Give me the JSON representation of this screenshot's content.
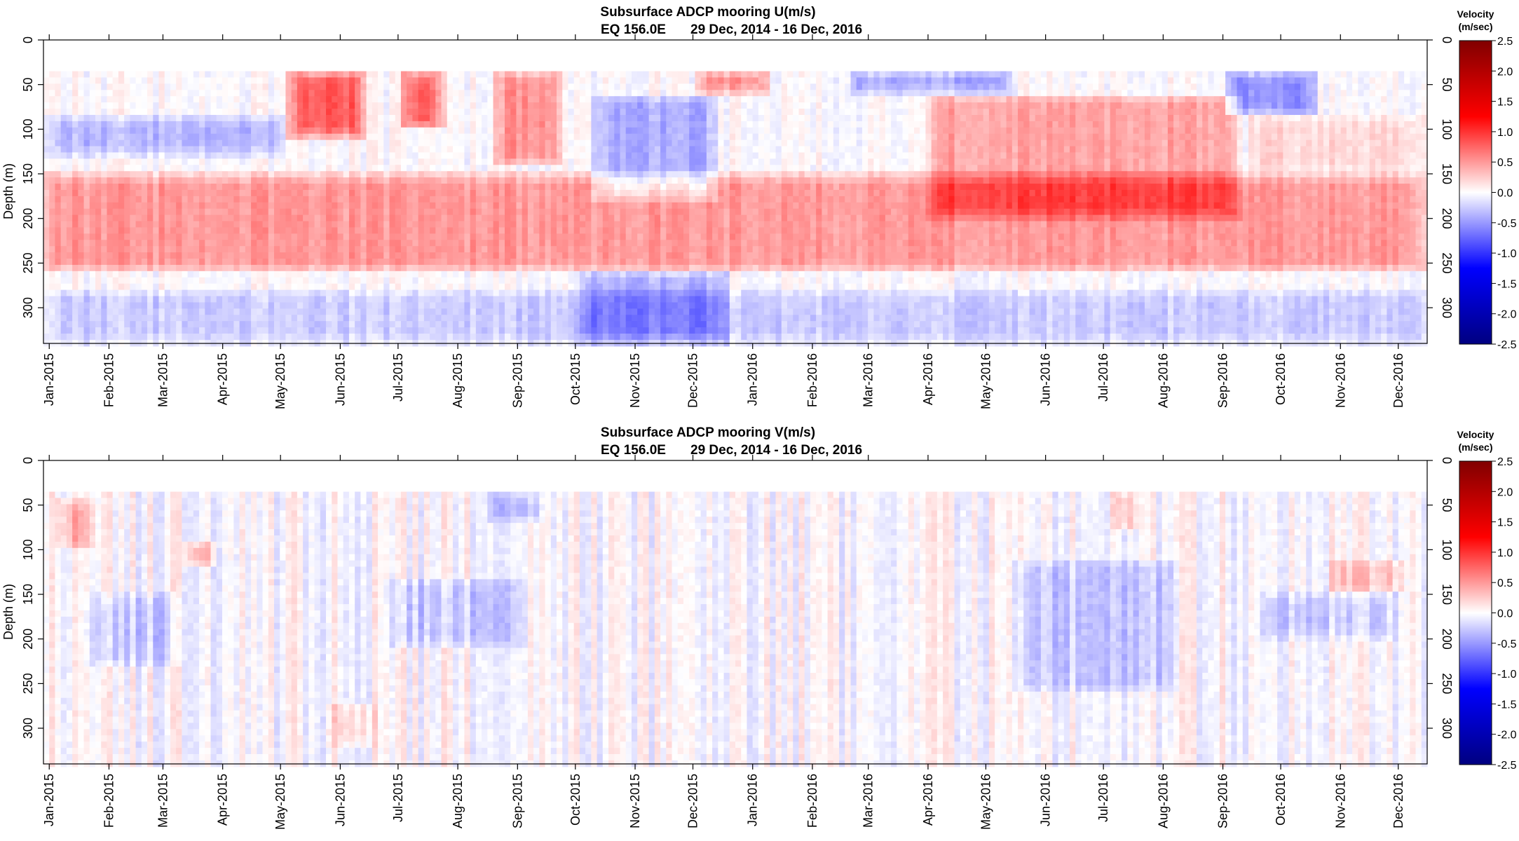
{
  "chart_data": [
    {
      "type": "heatmap",
      "title": "Subsurface ADCP mooring U(m/s)",
      "subtitle_location": "EQ 156.0E",
      "subtitle_dates": "29 Dec, 2014 - 16 Dec, 2016",
      "ylabel": "Depth (m)",
      "xlim": [
        "2014-12-29",
        "2016-12-16"
      ],
      "ylim": [
        0,
        340
      ],
      "data_depth_range": [
        35,
        340
      ],
      "y_ticks": [
        0,
        50,
        100,
        150,
        200,
        250,
        300
      ],
      "x_ticks": [
        {
          "label": "Jan-2015",
          "date": "2015-01-01"
        },
        {
          "label": "Feb-2015",
          "date": "2015-02-01"
        },
        {
          "label": "Mar-2015",
          "date": "2015-03-01"
        },
        {
          "label": "Apr-2015",
          "date": "2015-04-01"
        },
        {
          "label": "May-2015",
          "date": "2015-05-01"
        },
        {
          "label": "Jun-2015",
          "date": "2015-06-01"
        },
        {
          "label": "Jul-2015",
          "date": "2015-07-01"
        },
        {
          "label": "Aug-2015",
          "date": "2015-08-01"
        },
        {
          "label": "Sep-2015",
          "date": "2015-09-01"
        },
        {
          "label": "Oct-2015",
          "date": "2015-10-01"
        },
        {
          "label": "Nov-2015",
          "date": "2015-11-01"
        },
        {
          "label": "Dec-2015",
          "date": "2015-12-01"
        },
        {
          "label": "Jan-2016",
          "date": "2016-01-01"
        },
        {
          "label": "Feb-2016",
          "date": "2016-02-01"
        },
        {
          "label": "Mar-2016",
          "date": "2016-03-01"
        },
        {
          "label": "Apr-2016",
          "date": "2016-04-01"
        },
        {
          "label": "May-2016",
          "date": "2016-05-01"
        },
        {
          "label": "Jun-2016",
          "date": "2016-06-01"
        },
        {
          "label": "Jul-2016",
          "date": "2016-07-01"
        },
        {
          "label": "Aug-2016",
          "date": "2016-08-01"
        },
        {
          "label": "Sep-2016",
          "date": "2016-09-01"
        },
        {
          "label": "Oct-2016",
          "date": "2016-10-01"
        },
        {
          "label": "Nov-2016",
          "date": "2016-11-01"
        },
        {
          "label": "Dec-2016",
          "date": "2016-12-01"
        }
      ],
      "colorbar": {
        "title_line1": "Velocity",
        "title_line2": "(m/sec)",
        "range": [
          -2.5,
          2.5
        ],
        "ticks": [
          "2.5",
          "2.0",
          "1.5",
          "1.0",
          "0.5",
          "0.0",
          "-0.5",
          "-1.0",
          "-1.5",
          "-2.0",
          "-2.5"
        ],
        "colors": [
          "#000080",
          "#0000ff",
          "#ffffff",
          "#ff0000",
          "#800000"
        ]
      },
      "features": [
        {
          "start": "2014-12-29",
          "end": "2016-12-16",
          "dmin": 150,
          "dmax": 260,
          "value": 0.5
        },
        {
          "start": "2014-12-29",
          "end": "2015-05-05",
          "dmin": 85,
          "dmax": 130,
          "value": -0.35
        },
        {
          "start": "2015-05-05",
          "end": "2015-06-15",
          "dmin": 35,
          "dmax": 110,
          "value": 0.8
        },
        {
          "start": "2015-07-01",
          "end": "2015-07-25",
          "dmin": 35,
          "dmax": 100,
          "value": 0.75
        },
        {
          "start": "2015-08-20",
          "end": "2015-09-25",
          "dmin": 35,
          "dmax": 140,
          "value": 0.55
        },
        {
          "start": "2015-10-10",
          "end": "2015-12-15",
          "dmin": 60,
          "dmax": 180,
          "value": -0.4
        },
        {
          "start": "2015-10-01",
          "end": "2015-12-20",
          "dmin": 260,
          "dmax": 340,
          "value": -0.4
        },
        {
          "start": "2015-12-01",
          "end": "2016-01-10",
          "dmin": 35,
          "dmax": 60,
          "value": 0.6
        },
        {
          "start": "2016-02-20",
          "end": "2016-05-15",
          "dmin": 35,
          "dmax": 60,
          "value": -0.45
        },
        {
          "start": "2016-04-01",
          "end": "2016-09-10",
          "dmin": 60,
          "dmax": 200,
          "value": 0.45
        },
        {
          "start": "2016-09-01",
          "end": "2016-10-20",
          "dmin": 35,
          "dmax": 85,
          "value": -0.55
        },
        {
          "start": "2016-09-15",
          "end": "2016-12-16",
          "dmin": 85,
          "dmax": 150,
          "value": 0.2
        },
        {
          "start": "2014-12-29",
          "end": "2016-12-16",
          "dmin": 280,
          "dmax": 340,
          "value": -0.25
        }
      ]
    },
    {
      "type": "heatmap",
      "title": "Subsurface ADCP mooring V(m/s)",
      "subtitle_location": "EQ 156.0E",
      "subtitle_dates": "29 Dec, 2014 - 16 Dec, 2016",
      "ylabel": "Depth (m)",
      "xlim": [
        "2014-12-29",
        "2016-12-16"
      ],
      "ylim": [
        0,
        340
      ],
      "data_depth_range": [
        35,
        340
      ],
      "y_ticks": [
        0,
        50,
        100,
        150,
        200,
        250,
        300
      ],
      "x_ticks": [
        {
          "label": "Jan-2015",
          "date": "2015-01-01"
        },
        {
          "label": "Feb-2015",
          "date": "2015-02-01"
        },
        {
          "label": "Mar-2015",
          "date": "2015-03-01"
        },
        {
          "label": "Apr-2015",
          "date": "2015-04-01"
        },
        {
          "label": "May-2015",
          "date": "2015-05-01"
        },
        {
          "label": "Jun-2015",
          "date": "2015-06-01"
        },
        {
          "label": "Jul-2015",
          "date": "2015-07-01"
        },
        {
          "label": "Aug-2015",
          "date": "2015-08-01"
        },
        {
          "label": "Sep-2015",
          "date": "2015-09-01"
        },
        {
          "label": "Oct-2015",
          "date": "2015-10-01"
        },
        {
          "label": "Nov-2015",
          "date": "2015-11-01"
        },
        {
          "label": "Dec-2015",
          "date": "2015-12-01"
        },
        {
          "label": "Jan-2016",
          "date": "2016-01-01"
        },
        {
          "label": "Feb-2016",
          "date": "2016-02-01"
        },
        {
          "label": "Mar-2016",
          "date": "2016-03-01"
        },
        {
          "label": "Apr-2016",
          "date": "2016-04-01"
        },
        {
          "label": "May-2016",
          "date": "2016-05-01"
        },
        {
          "label": "Jun-2016",
          "date": "2016-06-01"
        },
        {
          "label": "Jul-2016",
          "date": "2016-07-01"
        },
        {
          "label": "Aug-2016",
          "date": "2016-08-01"
        },
        {
          "label": "Sep-2016",
          "date": "2016-09-01"
        },
        {
          "label": "Oct-2016",
          "date": "2016-10-01"
        },
        {
          "label": "Nov-2016",
          "date": "2016-11-01"
        },
        {
          "label": "Dec-2016",
          "date": "2016-12-01"
        }
      ],
      "colorbar": {
        "title_line1": "Velocity",
        "title_line2": "(m/sec)",
        "range": [
          -2.5,
          2.5
        ],
        "ticks": [
          "2.5",
          "2.0",
          "1.5",
          "1.0",
          "0.5",
          "0.0",
          "-0.5",
          "-1.0",
          "-1.5",
          "-2.0",
          "-2.5"
        ],
        "colors": [
          "#000080",
          "#0000ff",
          "#ffffff",
          "#ff0000",
          "#800000"
        ]
      },
      "features": [
        {
          "start": "2015-01-05",
          "end": "2015-01-25",
          "dmin": 45,
          "dmax": 100,
          "value": 0.4
        },
        {
          "start": "2015-03-10",
          "end": "2015-03-28",
          "dmin": 90,
          "dmax": 120,
          "value": 0.45
        },
        {
          "start": "2015-01-20",
          "end": "2015-03-10",
          "dmin": 150,
          "dmax": 230,
          "value": -0.25
        },
        {
          "start": "2015-06-25",
          "end": "2015-09-05",
          "dmin": 130,
          "dmax": 210,
          "value": -0.25
        },
        {
          "start": "2015-08-15",
          "end": "2015-09-15",
          "dmin": 35,
          "dmax": 70,
          "value": -0.3
        },
        {
          "start": "2015-05-25",
          "end": "2015-06-20",
          "dmin": 270,
          "dmax": 320,
          "value": 0.25
        },
        {
          "start": "2016-05-15",
          "end": "2016-08-10",
          "dmin": 110,
          "dmax": 260,
          "value": -0.25
        },
        {
          "start": "2016-07-05",
          "end": "2016-07-20",
          "dmin": 35,
          "dmax": 80,
          "value": 0.35
        },
        {
          "start": "2016-09-20",
          "end": "2016-11-30",
          "dmin": 150,
          "dmax": 200,
          "value": -0.25
        },
        {
          "start": "2016-10-25",
          "end": "2016-12-05",
          "dmin": 110,
          "dmax": 150,
          "value": 0.3
        }
      ]
    }
  ]
}
